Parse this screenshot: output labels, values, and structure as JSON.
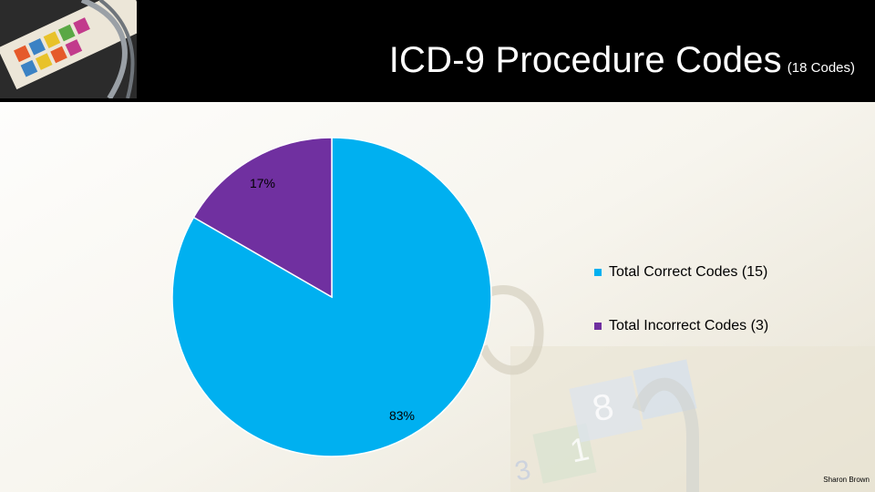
{
  "header": {
    "title": "ICD-9 Procedure Codes",
    "subtitle": "(18 Codes)"
  },
  "chart_data": {
    "type": "pie",
    "title": "",
    "series": [
      {
        "name": "Total Correct Codes (15)",
        "value": 15,
        "label": "83%",
        "color": "#00b0f0"
      },
      {
        "name": "Total Incorrect Codes (3)",
        "value": 3,
        "label": "17%",
        "color": "#7030a0"
      }
    ],
    "legend_position": "right"
  },
  "footer": {
    "author": "Sharon Brown"
  }
}
